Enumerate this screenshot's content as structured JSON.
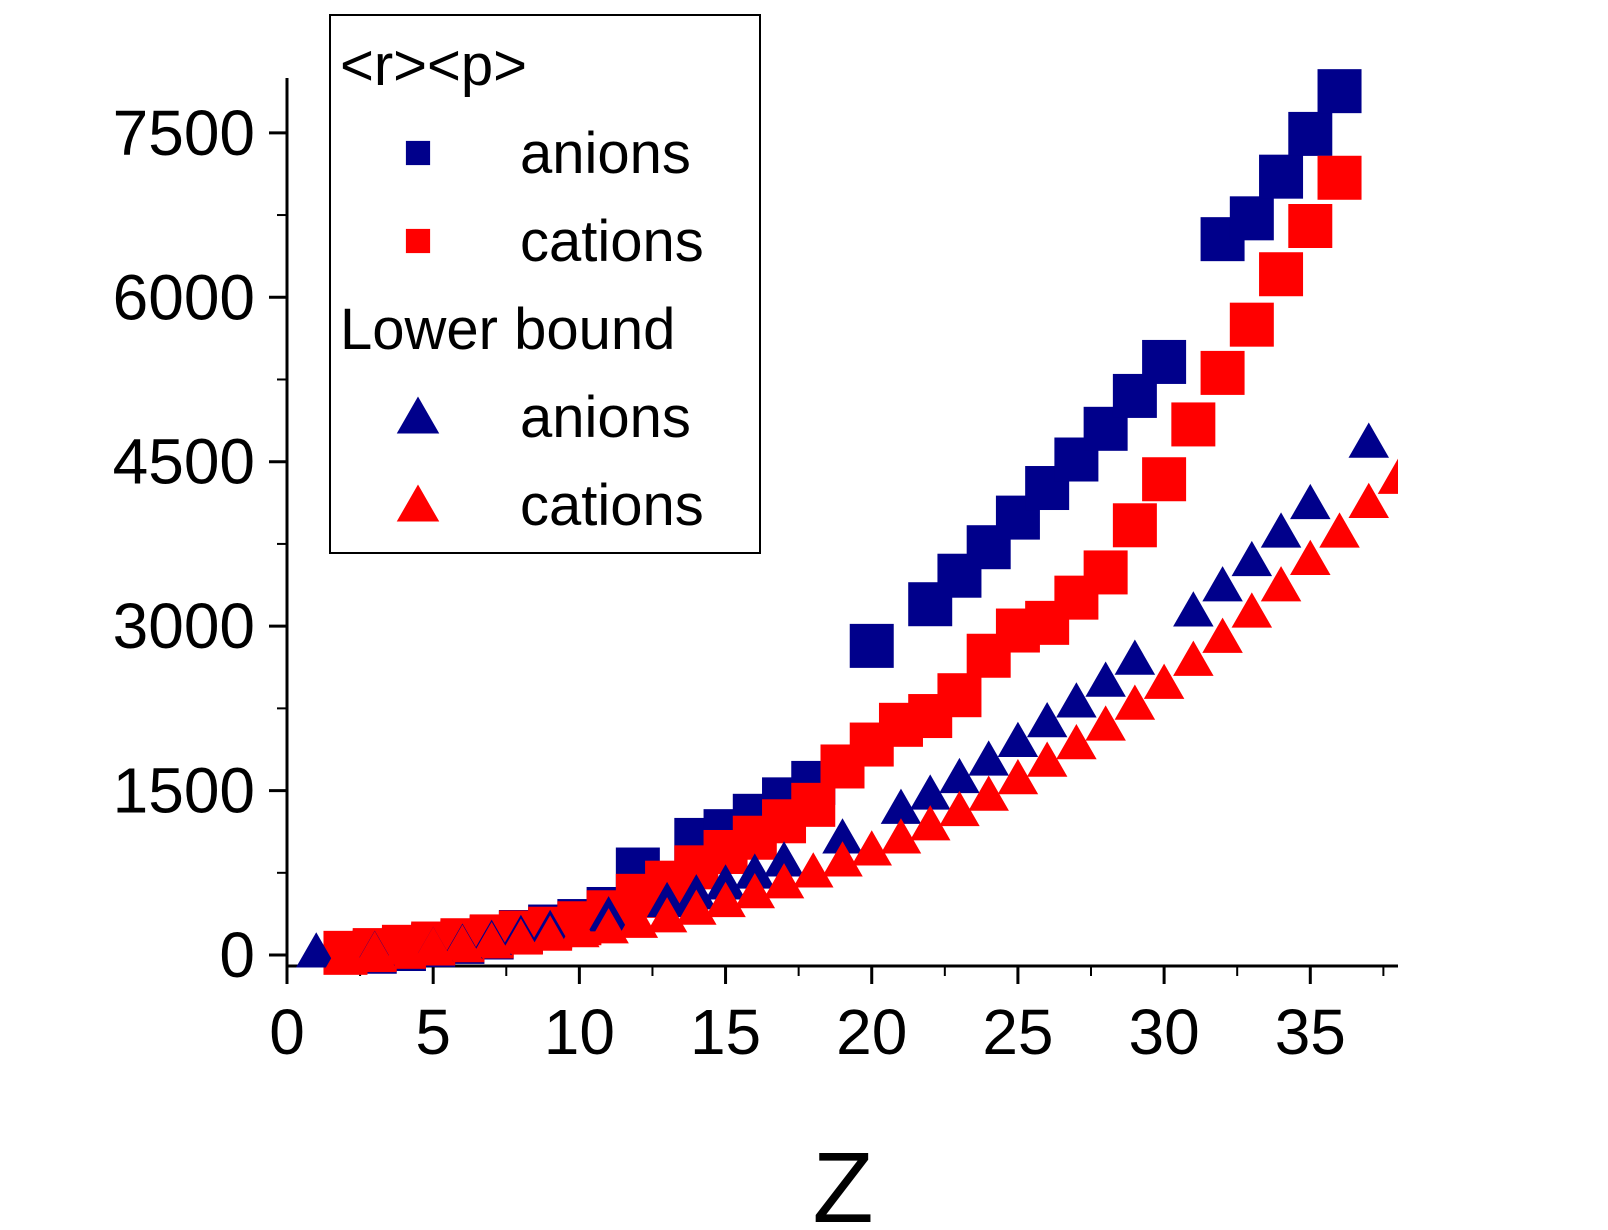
{
  "chart_data": {
    "type": "scatter",
    "xlabel": "Z",
    "ylabel": "",
    "xlim": [
      0,
      38
    ],
    "ylim": [
      -100,
      8000
    ],
    "x_ticks": [
      0,
      5,
      10,
      15,
      20,
      25,
      30,
      35
    ],
    "x_minor_step": 2.5,
    "y_ticks": [
      0,
      1500,
      3000,
      4500,
      6000,
      7500
    ],
    "y_minor_step": 750,
    "grid": false,
    "legend": {
      "placement": "top-left",
      "groups": [
        {
          "title": "<r><p>",
          "entries": [
            {
              "label": "anions",
              "series": 0
            },
            {
              "label": "cations",
              "series": 1
            }
          ]
        },
        {
          "title": "Lower bound",
          "entries": [
            {
              "label": "anions",
              "series": 2
            },
            {
              "label": "cations",
              "series": 3
            }
          ]
        }
      ]
    },
    "series": [
      {
        "marker": "square",
        "color": "#00008b",
        "points": [
          [
            3,
            30
          ],
          [
            4,
            55
          ],
          [
            5,
            90
          ],
          [
            6,
            120
          ],
          [
            7,
            160
          ],
          [
            8,
            210
          ],
          [
            9,
            260
          ],
          [
            10,
            310
          ],
          [
            11,
            420
          ],
          [
            12,
            780
          ],
          [
            13,
            560
          ],
          [
            14,
            1050
          ],
          [
            15,
            1130
          ],
          [
            16,
            1270
          ],
          [
            17,
            1420
          ],
          [
            18,
            1570
          ],
          [
            20,
            2820
          ],
          [
            22,
            3200
          ],
          [
            23,
            3460
          ],
          [
            24,
            3720
          ],
          [
            25,
            3990
          ],
          [
            26,
            4260
          ],
          [
            27,
            4520
          ],
          [
            28,
            4800
          ],
          [
            29,
            5100
          ],
          [
            30,
            5410
          ],
          [
            32,
            6530
          ],
          [
            33,
            6720
          ],
          [
            34,
            7100
          ],
          [
            35,
            7490
          ],
          [
            36,
            7880
          ]
        ]
      },
      {
        "marker": "square",
        "color": "#ff0000",
        "points": [
          [
            2,
            20
          ],
          [
            3,
            45
          ],
          [
            4,
            75
          ],
          [
            5,
            105
          ],
          [
            6,
            135
          ],
          [
            7,
            170
          ],
          [
            8,
            205
          ],
          [
            9,
            240
          ],
          [
            10,
            290
          ],
          [
            11,
            390
          ],
          [
            12,
            540
          ],
          [
            13,
            660
          ],
          [
            14,
            800
          ],
          [
            15,
            940
          ],
          [
            16,
            1070
          ],
          [
            17,
            1220
          ],
          [
            18,
            1370
          ],
          [
            19,
            1720
          ],
          [
            20,
            1920
          ],
          [
            21,
            2100
          ],
          [
            22,
            2180
          ],
          [
            23,
            2370
          ],
          [
            24,
            2730
          ],
          [
            25,
            2960
          ],
          [
            26,
            3030
          ],
          [
            27,
            3260
          ],
          [
            28,
            3490
          ],
          [
            29,
            3920
          ],
          [
            30,
            4340
          ],
          [
            31,
            4840
          ],
          [
            32,
            5310
          ],
          [
            33,
            5750
          ],
          [
            34,
            6210
          ],
          [
            35,
            6650
          ],
          [
            36,
            7090
          ]
        ]
      },
      {
        "marker": "triangle",
        "color": "#00008b",
        "points": [
          [
            1,
            30
          ],
          [
            3,
            45
          ],
          [
            5,
            80
          ],
          [
            6,
            110
          ],
          [
            7,
            145
          ],
          [
            8,
            190
          ],
          [
            9,
            235
          ],
          [
            11,
            360
          ],
          [
            13,
            490
          ],
          [
            14,
            560
          ],
          [
            15,
            650
          ],
          [
            16,
            750
          ],
          [
            17,
            860
          ],
          [
            19,
            1070
          ],
          [
            21,
            1340
          ],
          [
            22,
            1470
          ],
          [
            23,
            1620
          ],
          [
            24,
            1780
          ],
          [
            25,
            1950
          ],
          [
            26,
            2130
          ],
          [
            27,
            2310
          ],
          [
            28,
            2500
          ],
          [
            29,
            2700
          ],
          [
            31,
            3140
          ],
          [
            32,
            3370
          ],
          [
            33,
            3600
          ],
          [
            34,
            3860
          ],
          [
            35,
            4120
          ],
          [
            37,
            4680
          ]
        ]
      },
      {
        "marker": "triangle",
        "color": "#ff0000",
        "points": [
          [
            2,
            20
          ],
          [
            3,
            40
          ],
          [
            4,
            60
          ],
          [
            5,
            80
          ],
          [
            6,
            100
          ],
          [
            7,
            125
          ],
          [
            8,
            155
          ],
          [
            9,
            185
          ],
          [
            10,
            215
          ],
          [
            11,
            250
          ],
          [
            12,
            300
          ],
          [
            13,
            350
          ],
          [
            14,
            420
          ],
          [
            15,
            490
          ],
          [
            16,
            570
          ],
          [
            17,
            660
          ],
          [
            18,
            760
          ],
          [
            19,
            860
          ],
          [
            20,
            960
          ],
          [
            21,
            1070
          ],
          [
            22,
            1190
          ],
          [
            23,
            1320
          ],
          [
            24,
            1460
          ],
          [
            25,
            1610
          ],
          [
            26,
            1770
          ],
          [
            27,
            1930
          ],
          [
            28,
            2100
          ],
          [
            29,
            2290
          ],
          [
            30,
            2480
          ],
          [
            31,
            2690
          ],
          [
            32,
            2900
          ],
          [
            33,
            3130
          ],
          [
            34,
            3370
          ],
          [
            35,
            3610
          ],
          [
            36,
            3860
          ],
          [
            37,
            4130
          ],
          [
            38,
            4350
          ]
        ]
      }
    ]
  }
}
